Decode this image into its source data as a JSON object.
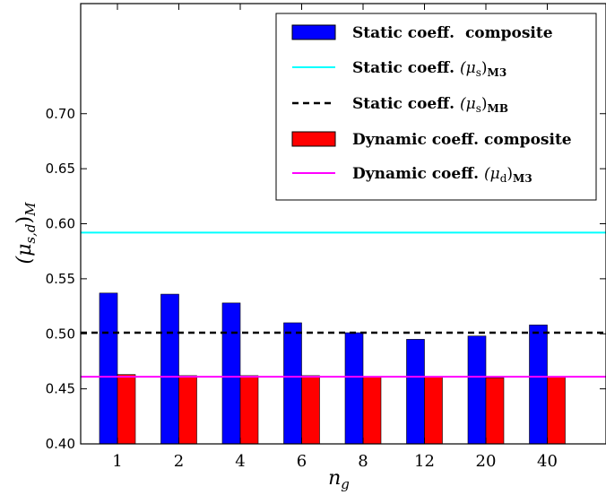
{
  "chart_data": {
    "type": "bar",
    "categories": [
      "1",
      "2",
      "4",
      "6",
      "8",
      "12",
      "20",
      "40"
    ],
    "series": [
      {
        "name": "Static coeff.  composite",
        "values": [
          0.537,
          0.536,
          0.528,
          0.51,
          0.501,
          0.495,
          0.498,
          0.508
        ],
        "color": "#0000ff"
      },
      {
        "name": "Dynamic coeff. composite",
        "values": [
          0.463,
          0.462,
          0.462,
          0.462,
          0.461,
          0.461,
          0.46,
          0.461
        ],
        "color": "#ff0000"
      }
    ],
    "reference_lines": [
      {
        "name_text": "Static coeff. ",
        "name_math": "(μ",
        "name_sub": "s",
        "name_close": ")",
        "name_sub2": "M3",
        "value": 0.592,
        "color": "#00ffff",
        "style": "solid"
      },
      {
        "name_text": "Static coeff. ",
        "name_math": "(μ",
        "name_sub": "s",
        "name_close": ")",
        "name_sub2": "MB",
        "value": 0.501,
        "color": "#000000",
        "style": "dashed"
      },
      {
        "name_text": "Dynamic coeff. ",
        "name_math": "(μ",
        "name_sub": "d",
        "name_close": ")",
        "name_sub2": "M3",
        "value": 0.461,
        "color": "#ff00ff",
        "style": "solid"
      }
    ],
    "ylim": [
      0.4,
      0.8
    ],
    "yticks": [
      "0.40",
      "0.45",
      "0.50",
      "0.55",
      "0.60",
      "0.65",
      "0.70"
    ],
    "xlabel": {
      "main": "n",
      "sub": "g"
    },
    "ylabel": {
      "main": "(μ",
      "sub": "s,d",
      "close": ")",
      "sub2": "M"
    },
    "legend_position": "top-right",
    "grid": false
  }
}
